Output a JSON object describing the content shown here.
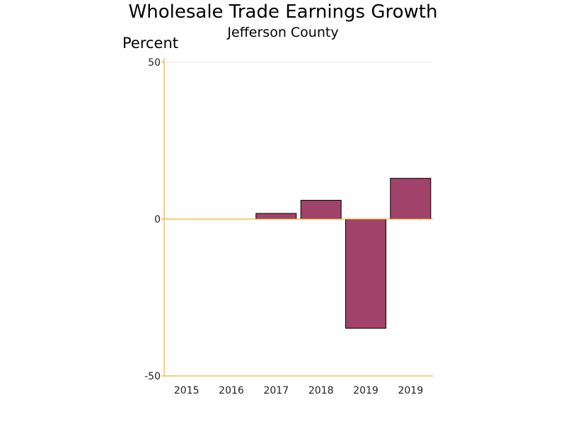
{
  "chart_data": {
    "type": "bar",
    "title": "Wholesale Trade Earnings Growth",
    "subtitle": "Jefferson County",
    "ylabel": "Percent",
    "xlabel": "",
    "categories": [
      "2015",
      "2016",
      "2017",
      "2018",
      "2019",
      "2019"
    ],
    "values": [
      0,
      0,
      1.8,
      6.0,
      -34.8,
      13.0
    ],
    "ylim": [
      -50,
      50
    ],
    "yticks": [
      50,
      0,
      -50
    ],
    "grid": true,
    "legend": "none",
    "bar_color": "#a0426a",
    "bar_border_color": "#000000",
    "axis_color": "#f0a000",
    "grid_color": "#e6e6e6"
  }
}
